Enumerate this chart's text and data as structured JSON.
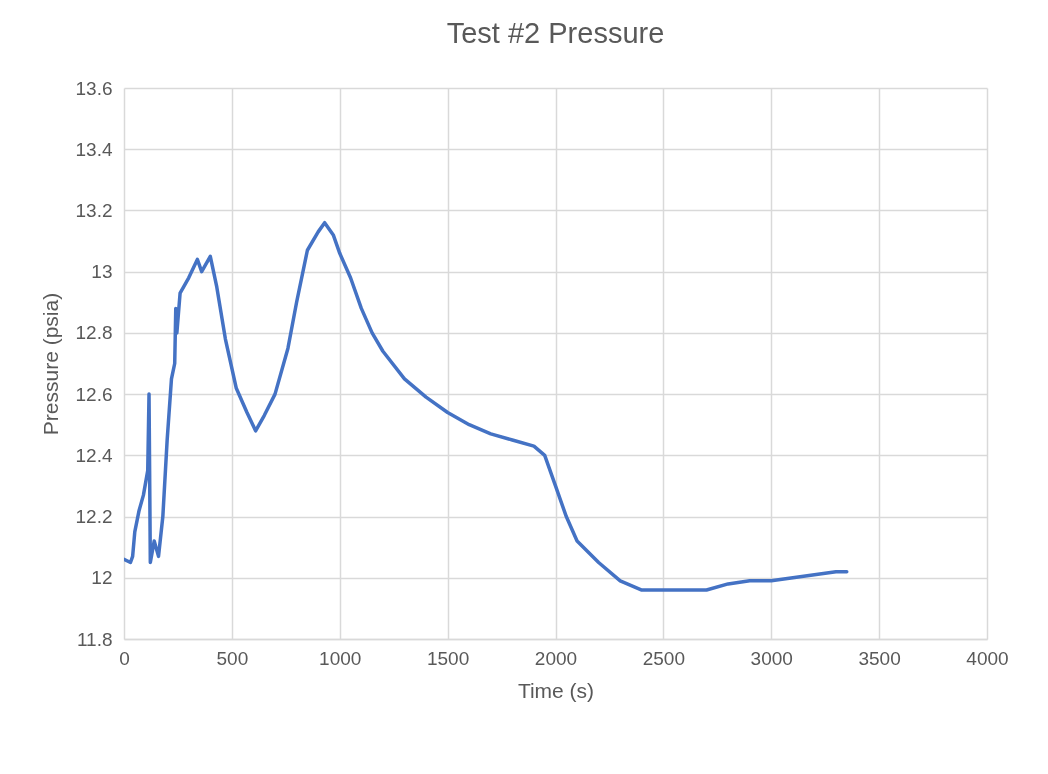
{
  "chart_data": {
    "type": "line",
    "title": "Test #2 Pressure",
    "xlabel": "Time (s)",
    "ylabel": "Pressure (psia)",
    "xlim": [
      0,
      4000
    ],
    "xticks": [
      0,
      500,
      1000,
      1500,
      2000,
      2500,
      3000,
      3500,
      4000
    ],
    "ylim": [
      11.8,
      13.6
    ],
    "yticks": [
      11.8,
      12,
      12.2,
      12.4,
      12.6,
      12.8,
      13,
      13.2,
      13.4,
      13.6
    ],
    "grid": true,
    "legend": false,
    "marker": "none",
    "line_style": "solid",
    "x": [
      0,
      30,
      40,
      50,
      70,
      90,
      110,
      116,
      122,
      140,
      160,
      180,
      200,
      220,
      235,
      240,
      245,
      260,
      300,
      340,
      360,
      400,
      430,
      470,
      520,
      570,
      610,
      650,
      700,
      760,
      800,
      850,
      900,
      930,
      970,
      1000,
      1050,
      1100,
      1150,
      1200,
      1300,
      1400,
      1500,
      1600,
      1700,
      1800,
      1900,
      1950,
      2000,
      2050,
      2100,
      2200,
      2300,
      2400,
      2500,
      2600,
      2700,
      2800,
      2900,
      3000,
      3100,
      3200,
      3300,
      3350
    ],
    "series": [
      {
        "color": "#4472c4",
        "values": [
          12.06,
          12.05,
          12.07,
          12.15,
          12.22,
          12.27,
          12.35,
          12.6,
          12.05,
          12.12,
          12.07,
          12.2,
          12.45,
          12.65,
          12.7,
          12.88,
          12.8,
          12.93,
          12.98,
          13.04,
          13.0,
          13.05,
          12.95,
          12.78,
          12.62,
          12.54,
          12.48,
          12.53,
          12.6,
          12.75,
          12.9,
          13.07,
          13.13,
          13.16,
          13.12,
          13.06,
          12.98,
          12.88,
          12.8,
          12.74,
          12.65,
          12.59,
          12.54,
          12.5,
          12.47,
          12.45,
          12.43,
          12.4,
          12.3,
          12.2,
          12.12,
          12.05,
          11.99,
          11.96,
          11.96,
          11.96,
          11.96,
          11.98,
          11.99,
          11.99,
          12.0,
          12.01,
          12.02,
          12.02
        ]
      }
    ]
  }
}
